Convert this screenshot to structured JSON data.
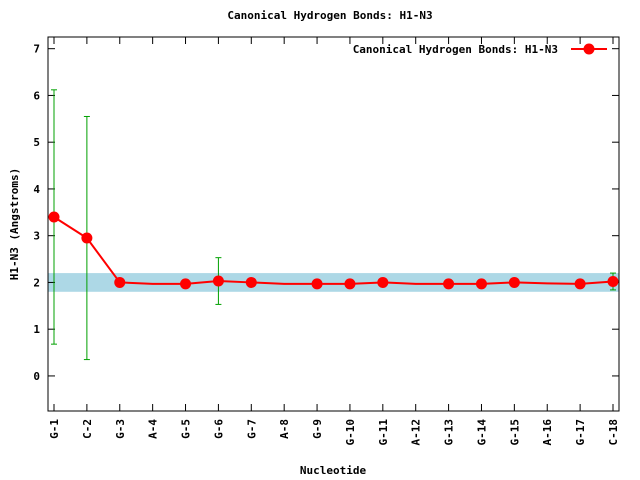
{
  "chart_data": {
    "type": "line",
    "title": "Canonical Hydrogen Bonds: H1-N3",
    "x_label": "Nucleotide",
    "y_label": "H1-N3 (Angstroms)",
    "categories": [
      "G-1",
      "C-2",
      "G-3",
      "A-4",
      "G-5",
      "G-6",
      "G-7",
      "A-8",
      "G-9",
      "G-10",
      "G-11",
      "A-12",
      "G-13",
      "G-14",
      "G-15",
      "A-16",
      "G-17",
      "C-18"
    ],
    "series": [
      {
        "name": "Canonical Hydrogen Bonds: H1-N3",
        "color": "#ff0000",
        "values": [
          3.4,
          2.95,
          2.0,
          1.97,
          1.97,
          2.03,
          2.0,
          1.97,
          1.97,
          1.97,
          2.0,
          1.97,
          1.97,
          1.97,
          2.0,
          1.98,
          1.97,
          2.02
        ],
        "markers": [
          true,
          true,
          true,
          false,
          true,
          true,
          true,
          false,
          true,
          true,
          true,
          false,
          true,
          true,
          true,
          false,
          true,
          true
        ],
        "errors": [
          2.72,
          2.6,
          null,
          null,
          null,
          0.5,
          null,
          null,
          null,
          null,
          null,
          null,
          null,
          null,
          null,
          null,
          null,
          0.18
        ],
        "error_color": "#00a000"
      }
    ],
    "band": [
      1.8,
      2.2
    ],
    "band_color": "#add8e6",
    "ylim": [
      -0.75,
      7.25
    ],
    "yticks": [
      0,
      1,
      2,
      3,
      4,
      5,
      6,
      7
    ],
    "legend": "top-right"
  }
}
